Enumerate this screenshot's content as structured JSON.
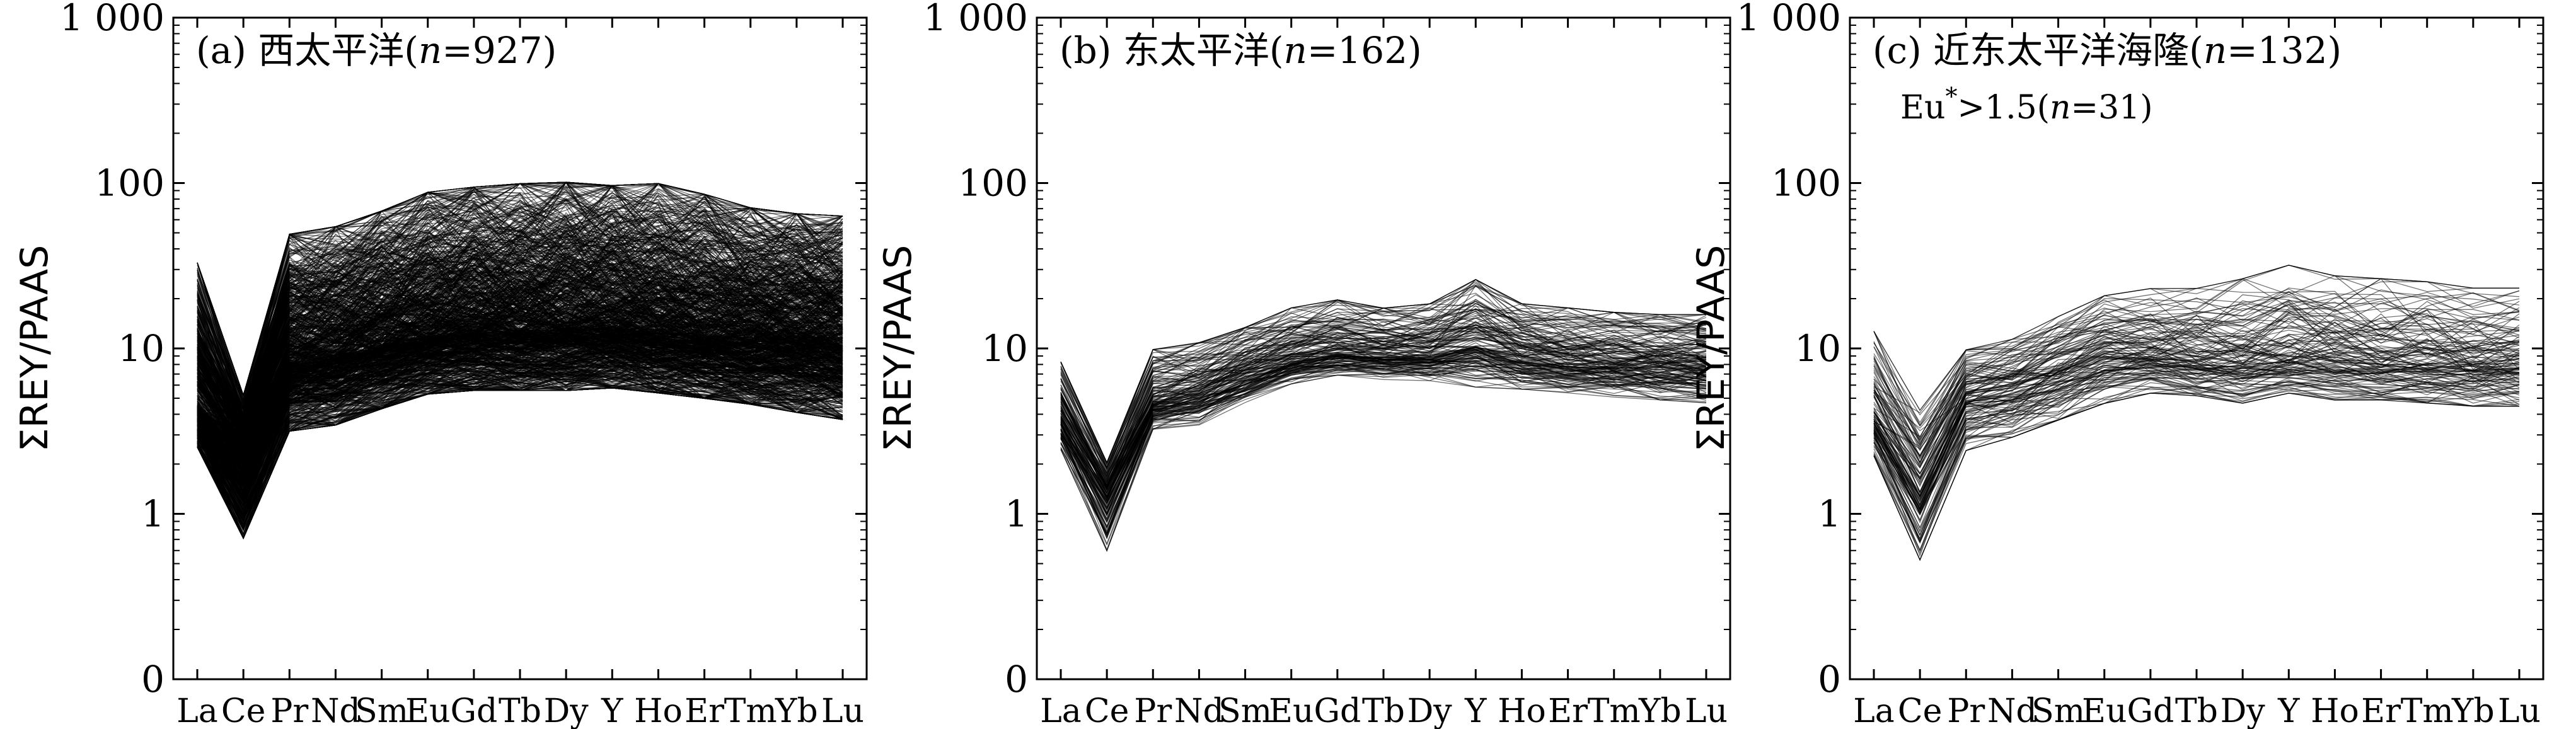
{
  "chart_data": [
    {
      "type": "line",
      "scale": "log",
      "ylabel": "ΣREY/PAAS",
      "y_ticks": [
        "0",
        "1",
        "10",
        "100",
        "1 000"
      ],
      "categories": [
        "La",
        "Ce",
        "Pr",
        "Nd",
        "Sm",
        "Eu",
        "Gd",
        "Tb",
        "Dy",
        "Y",
        "Ho",
        "Er",
        "Tm",
        "Yb",
        "Lu"
      ],
      "label": "(a) 西太平洋(",
      "label_n": "n",
      "label_tail": "=927)",
      "note": "",
      "series_count": 927,
      "envelope": {
        "median": [
          4.5,
          2.2,
          8,
          9,
          10.5,
          12,
          13,
          13,
          13.5,
          13.5,
          12.5,
          12,
          11.5,
          11,
          10.5
        ],
        "low": [
          2.6,
          0.75,
          3.3,
          3.6,
          4.5,
          5.5,
          5.8,
          5.8,
          5.8,
          6.0,
          5.6,
          5.2,
          4.8,
          4.3,
          3.9
        ],
        "high": [
          30,
          5,
          45,
          50,
          62,
          80,
          86,
          90,
          92,
          88,
          90,
          78,
          65,
          60,
          58
        ]
      }
    },
    {
      "type": "line",
      "scale": "log",
      "ylabel": "ΣREY/PAAS",
      "y_ticks": [
        "0",
        "1",
        "10",
        "100",
        "1 000"
      ],
      "categories": [
        "La",
        "Ce",
        "Pr",
        "Nd",
        "Sm",
        "Eu",
        "Gd",
        "Tb",
        "Dy",
        "Y",
        "Ho",
        "Er",
        "Tm",
        "Yb",
        "Lu"
      ],
      "label": "(b) 东太平洋(",
      "label_n": "n",
      "label_tail": "=162)",
      "note": "",
      "series_count": 162,
      "envelope": {
        "median": [
          3.8,
          1.3,
          4.6,
          5.5,
          7,
          8.5,
          9.5,
          9.2,
          9.4,
          10.5,
          9.0,
          8.5,
          8.3,
          8.0,
          7.8
        ],
        "low": [
          2.5,
          0.62,
          3.3,
          3.5,
          4.8,
          6.2,
          7.0,
          6.6,
          6.5,
          6.0,
          5.8,
          5.5,
          5.2,
          5.0,
          4.8
        ],
        "high": [
          8,
          2.0,
          9.5,
          10.5,
          13,
          17,
          19,
          17,
          18,
          25,
          18,
          17,
          16,
          15.5,
          15.5
        ]
      }
    },
    {
      "type": "line",
      "scale": "log",
      "ylabel": "ΣREY/PAAS",
      "y_ticks": [
        "0",
        "1",
        "10",
        "100",
        "1 000"
      ],
      "categories": [
        "La",
        "Ce",
        "Pr",
        "Nd",
        "Sm",
        "Eu",
        "Gd",
        "Tb",
        "Dy",
        "Y",
        "Ho",
        "Er",
        "Tm",
        "Yb",
        "Lu"
      ],
      "label": "(c) 近东太平洋海隆(",
      "label_n": "n",
      "label_tail": "=132)",
      "note": "Eu",
      "note_sup": "*",
      "note_mid": ">1.5(",
      "note_n": "n",
      "note_tail": "=31)",
      "series_count": 132,
      "envelope": {
        "median": [
          3.8,
          1.3,
          5,
          5.8,
          7,
          9,
          9,
          8.5,
          8.5,
          9,
          8.5,
          8.3,
          8.2,
          8.0,
          8.0
        ],
        "low": [
          2.3,
          0.55,
          2.5,
          3.0,
          3.8,
          4.8,
          5.5,
          5.3,
          4.8,
          5.5,
          5.0,
          5.0,
          4.8,
          4.6,
          4.6
        ],
        "high": [
          12,
          4.0,
          9.5,
          11,
          15,
          20,
          22,
          22,
          25,
          30,
          26,
          25,
          24,
          22,
          22
        ]
      }
    }
  ]
}
